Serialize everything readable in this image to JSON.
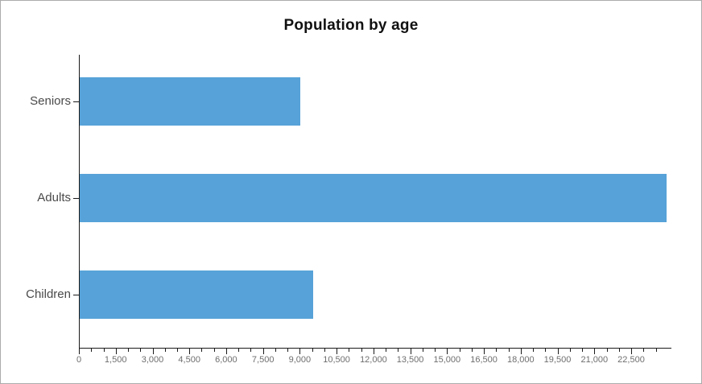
{
  "chart_data": {
    "type": "bar",
    "orientation": "horizontal",
    "title": "Population by age",
    "categories": [
      "Seniors",
      "Adults",
      "Children"
    ],
    "values": [
      9000,
      23900,
      9500
    ],
    "xlabel": "",
    "ylabel": "",
    "x_axis": {
      "min": 0,
      "max": 24150,
      "major_tick_step": 1500,
      "minor_tick_step": 500,
      "minor_tick_max": 24000,
      "major_tick_labels": [
        "0",
        "1,500",
        "3,000",
        "4,500",
        "6,000",
        "7,500",
        "9,000",
        "10,500",
        "12,000",
        "13,500",
        "15,000",
        "16,500",
        "18,000",
        "19,500",
        "21,000",
        "22,500"
      ]
    },
    "grid": "off",
    "legend": "none",
    "colors": {
      "bar": "#57A2D8",
      "axis": "#1a1a1a",
      "x_tick_label": "#6e6e6e",
      "y_tick_label": "#4a4a4a",
      "title": "#111111",
      "frame_border": "#acacac",
      "background": "#ffffff"
    }
  }
}
